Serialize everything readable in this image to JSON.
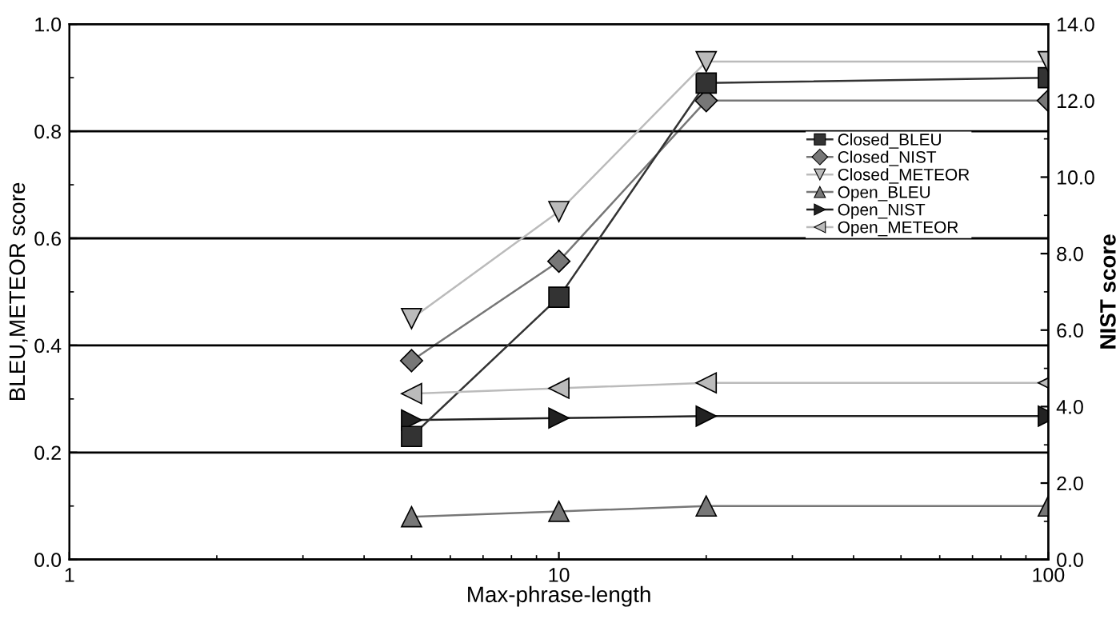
{
  "chart_data": {
    "type": "line",
    "xlabel": "Max-phrase-length",
    "ylabel": "BLEU,METEOR score",
    "y2label": "NIST score",
    "x": [
      5,
      10,
      20,
      100
    ],
    "log": "x",
    "xlim": [
      1,
      100
    ],
    "xticks": [
      1,
      10,
      100
    ],
    "ylim": [
      0,
      1
    ],
    "yticks": [
      {
        "value": 0,
        "label": "0.0"
      },
      {
        "value": 0.2,
        "label": "0.2"
      },
      {
        "value": 0.4,
        "label": "0.4"
      },
      {
        "value": 0.6,
        "label": "0.6"
      },
      {
        "value": 0.8,
        "label": "0.8"
      },
      {
        "value": 1,
        "label": "1.0"
      }
    ],
    "y2lim": [
      0,
      14
    ],
    "y2ticks": [
      {
        "value": 0,
        "label": "0.0"
      },
      {
        "value": 2,
        "label": "2.0"
      },
      {
        "value": 4,
        "label": "4.0"
      },
      {
        "value": 6,
        "label": "6.0"
      },
      {
        "value": 8,
        "label": "8.0"
      },
      {
        "value": 10,
        "label": "10.0"
      },
      {
        "value": 12,
        "label": "12.0"
      },
      {
        "value": 14,
        "label": "14.0"
      }
    ],
    "grid": "y",
    "legend": "right",
    "line_style": "solid",
    "series": [
      {
        "name": "Closed_BLEU",
        "color": "#333333",
        "marker": "square",
        "values": [
          0.23,
          0.49,
          0.89,
          0.9
        ]
      },
      {
        "name": "Closed_NIST",
        "color": "#777777",
        "marker": "diamond",
        "axis": "y2",
        "values": [
          5.2,
          7.8,
          12.0,
          12.0
        ]
      },
      {
        "name": "Closed_METEOR",
        "color": "#bbbbbb",
        "marker": "triangle-down",
        "values": [
          0.45,
          0.65,
          0.93,
          0.93
        ]
      },
      {
        "name": "Open_BLEU",
        "color": "#777777",
        "marker": "triangle",
        "values": [
          0.08,
          0.09,
          0.1,
          0.1
        ]
      },
      {
        "name": "Open_NIST",
        "color": "#222222",
        "marker": "triangle-right",
        "axis": "y2",
        "values": [
          3.65,
          3.7,
          3.75,
          3.75
        ]
      },
      {
        "name": "Open_METEOR",
        "color": "#bbbbbb",
        "marker": "triangle-left",
        "values": [
          0.31,
          0.32,
          0.33,
          0.33
        ]
      }
    ]
  }
}
